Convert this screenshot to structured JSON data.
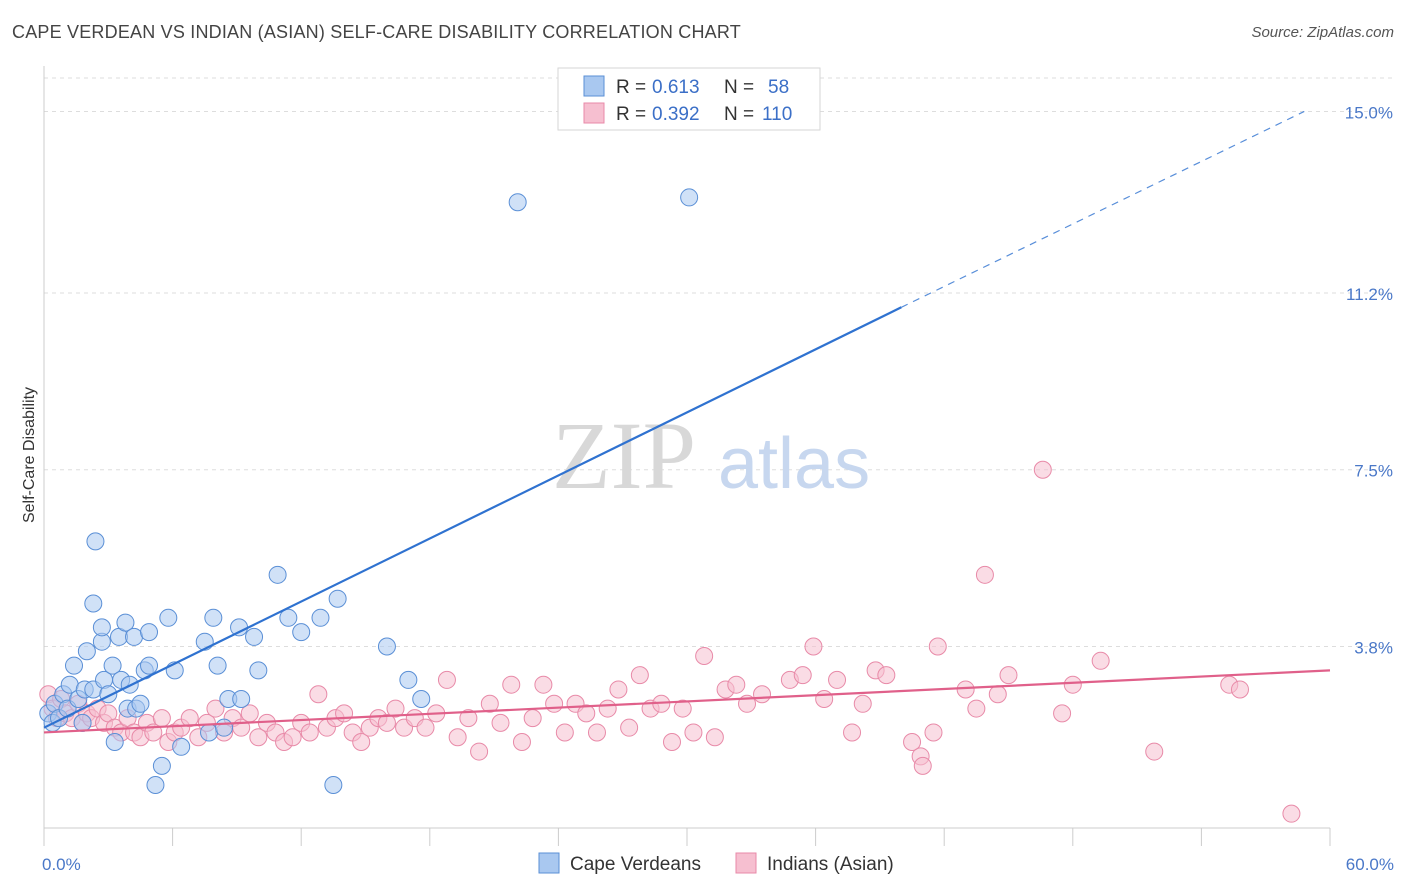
{
  "title": "CAPE VERDEAN VS INDIAN (ASIAN) SELF-CARE DISABILITY CORRELATION CHART",
  "source": "Source: ZipAtlas.com",
  "watermark": {
    "zip": "ZIP",
    "atlas": "atlas"
  },
  "colors": {
    "blue_fill": "#a9c8f0",
    "blue_stroke": "#5a8fd6",
    "blue_line": "#2f72d0",
    "pink_fill": "#f6bfd0",
    "pink_stroke": "#e88aa8",
    "pink_line": "#e0608a",
    "grid": "#dddddd",
    "axis_label": "#4a78c8"
  },
  "legend": {
    "row1": {
      "r_label": "R =",
      "r_value": "0.613",
      "n_label": "N =",
      "n_value": "58"
    },
    "row2": {
      "r_label": "R =",
      "r_value": "0.392",
      "n_label": "N =",
      "n_value": "110"
    }
  },
  "chart_data": {
    "type": "scatter",
    "title": "CAPE VERDEAN VS INDIAN (ASIAN) SELF-CARE DISABILITY CORRELATION CHART",
    "xlabel": "",
    "ylabel": "Self-Care Disability",
    "xlim": [
      0,
      60
    ],
    "ylim": [
      0,
      15.7
    ],
    "x_tick_labels": [
      "0.0%",
      "60.0%"
    ],
    "y_ticks": [
      3.8,
      7.5,
      11.2,
      15.0
    ],
    "y_tick_labels": [
      "3.8%",
      "7.5%",
      "11.2%",
      "15.0%"
    ],
    "grid": true,
    "legend_position": "top-center",
    "series": [
      {
        "name": "Cape Verdeans",
        "color": "#a9c8f0",
        "points": [
          [
            0.2,
            2.4
          ],
          [
            0.4,
            2.2
          ],
          [
            0.5,
            2.6
          ],
          [
            0.7,
            2.3
          ],
          [
            0.9,
            2.8
          ],
          [
            1.1,
            2.5
          ],
          [
            1.2,
            3.0
          ],
          [
            1.4,
            3.4
          ],
          [
            1.6,
            2.7
          ],
          [
            1.8,
            2.2
          ],
          [
            1.9,
            2.9
          ],
          [
            2.0,
            3.7
          ],
          [
            2.3,
            2.9
          ],
          [
            2.4,
            6.0
          ],
          [
            2.3,
            4.7
          ],
          [
            2.7,
            3.9
          ],
          [
            2.7,
            4.2
          ],
          [
            2.8,
            3.1
          ],
          [
            3.0,
            2.8
          ],
          [
            3.2,
            3.4
          ],
          [
            3.3,
            1.8
          ],
          [
            3.5,
            4.0
          ],
          [
            3.6,
            3.1
          ],
          [
            3.8,
            4.3
          ],
          [
            3.9,
            2.5
          ],
          [
            4.0,
            3.0
          ],
          [
            4.2,
            4.0
          ],
          [
            4.3,
            2.5
          ],
          [
            4.5,
            2.6
          ],
          [
            4.7,
            3.3
          ],
          [
            4.9,
            4.1
          ],
          [
            4.9,
            3.4
          ],
          [
            5.2,
            0.9
          ],
          [
            5.5,
            1.3
          ],
          [
            5.8,
            4.4
          ],
          [
            6.1,
            3.3
          ],
          [
            6.4,
            1.7
          ],
          [
            7.5,
            3.9
          ],
          [
            7.7,
            2.0
          ],
          [
            7.9,
            4.4
          ],
          [
            8.1,
            3.4
          ],
          [
            8.4,
            2.1
          ],
          [
            8.6,
            2.7
          ],
          [
            9.1,
            4.2
          ],
          [
            9.2,
            2.7
          ],
          [
            9.8,
            4.0
          ],
          [
            10.0,
            3.3
          ],
          [
            10.9,
            5.3
          ],
          [
            11.4,
            4.4
          ],
          [
            12.0,
            4.1
          ],
          [
            12.9,
            4.4
          ],
          [
            13.5,
            0.9
          ],
          [
            13.7,
            4.8
          ],
          [
            16.0,
            3.8
          ],
          [
            17.0,
            3.1
          ],
          [
            17.6,
            2.7
          ],
          [
            22.1,
            13.1
          ],
          [
            30.1,
            13.2
          ]
        ],
        "trend": {
          "x": [
            0,
            40,
            58.8
          ],
          "y": [
            2.1,
            10.9,
            15.0
          ],
          "dashed_from_x": 40
        }
      },
      {
        "name": "Indians (Asian)",
        "color": "#f6bfd0",
        "points": [
          [
            0.2,
            2.8
          ],
          [
            0.4,
            2.5
          ],
          [
            0.6,
            2.3
          ],
          [
            0.8,
            2.7
          ],
          [
            1.0,
            2.4
          ],
          [
            1.3,
            2.3
          ],
          [
            1.6,
            2.6
          ],
          [
            1.8,
            2.2
          ],
          [
            2.0,
            2.4
          ],
          [
            2.2,
            2.3
          ],
          [
            2.5,
            2.5
          ],
          [
            2.8,
            2.2
          ],
          [
            3.0,
            2.4
          ],
          [
            3.3,
            2.1
          ],
          [
            3.6,
            2.0
          ],
          [
            3.9,
            2.3
          ],
          [
            4.2,
            2.0
          ],
          [
            4.5,
            1.9
          ],
          [
            4.8,
            2.2
          ],
          [
            5.1,
            2.0
          ],
          [
            5.5,
            2.3
          ],
          [
            5.8,
            1.8
          ],
          [
            6.1,
            2.0
          ],
          [
            6.4,
            2.1
          ],
          [
            6.8,
            2.3
          ],
          [
            7.2,
            1.9
          ],
          [
            7.6,
            2.2
          ],
          [
            8.0,
            2.5
          ],
          [
            8.4,
            2.0
          ],
          [
            8.8,
            2.3
          ],
          [
            9.2,
            2.1
          ],
          [
            9.6,
            2.4
          ],
          [
            10.0,
            1.9
          ],
          [
            10.4,
            2.2
          ],
          [
            10.8,
            2.0
          ],
          [
            11.2,
            1.8
          ],
          [
            11.6,
            1.9
          ],
          [
            12.0,
            2.2
          ],
          [
            12.4,
            2.0
          ],
          [
            12.8,
            2.8
          ],
          [
            13.2,
            2.1
          ],
          [
            13.6,
            2.3
          ],
          [
            14.0,
            2.4
          ],
          [
            14.4,
            2.0
          ],
          [
            14.8,
            1.8
          ],
          [
            15.2,
            2.1
          ],
          [
            15.6,
            2.3
          ],
          [
            16.0,
            2.2
          ],
          [
            16.4,
            2.5
          ],
          [
            16.8,
            2.1
          ],
          [
            17.3,
            2.3
          ],
          [
            17.8,
            2.1
          ],
          [
            18.3,
            2.4
          ],
          [
            18.8,
            3.1
          ],
          [
            19.3,
            1.9
          ],
          [
            19.8,
            2.3
          ],
          [
            20.3,
            1.6
          ],
          [
            20.8,
            2.6
          ],
          [
            21.3,
            2.2
          ],
          [
            21.8,
            3.0
          ],
          [
            22.3,
            1.8
          ],
          [
            22.8,
            2.3
          ],
          [
            23.3,
            3.0
          ],
          [
            23.8,
            2.6
          ],
          [
            24.3,
            2.0
          ],
          [
            24.8,
            2.6
          ],
          [
            25.3,
            2.4
          ],
          [
            25.8,
            2.0
          ],
          [
            26.3,
            2.5
          ],
          [
            26.8,
            2.9
          ],
          [
            27.3,
            2.1
          ],
          [
            27.8,
            3.2
          ],
          [
            28.3,
            2.5
          ],
          [
            28.8,
            2.6
          ],
          [
            29.3,
            1.8
          ],
          [
            29.8,
            2.5
          ],
          [
            30.3,
            2.0
          ],
          [
            30.8,
            3.6
          ],
          [
            31.3,
            1.9
          ],
          [
            31.8,
            2.9
          ],
          [
            32.3,
            3.0
          ],
          [
            32.8,
            2.6
          ],
          [
            33.5,
            2.8
          ],
          [
            34.8,
            3.1
          ],
          [
            35.4,
            3.2
          ],
          [
            35.9,
            3.8
          ],
          [
            36.4,
            2.7
          ],
          [
            37.0,
            3.1
          ],
          [
            37.7,
            2.0
          ],
          [
            38.2,
            2.6
          ],
          [
            38.8,
            3.3
          ],
          [
            39.3,
            3.2
          ],
          [
            40.5,
            1.8
          ],
          [
            40.9,
            1.5
          ],
          [
            41.0,
            1.3
          ],
          [
            41.5,
            2.0
          ],
          [
            41.7,
            3.8
          ],
          [
            43.0,
            2.9
          ],
          [
            43.5,
            2.5
          ],
          [
            43.9,
            5.3
          ],
          [
            44.5,
            2.8
          ],
          [
            45.0,
            3.2
          ],
          [
            46.6,
            7.5
          ],
          [
            47.5,
            2.4
          ],
          [
            48.0,
            3.0
          ],
          [
            49.3,
            3.5
          ],
          [
            51.8,
            1.6
          ],
          [
            55.3,
            3.0
          ],
          [
            55.8,
            2.9
          ],
          [
            58.2,
            0.3
          ]
        ],
        "trend": {
          "x": [
            0,
            60
          ],
          "y": [
            2.0,
            3.3
          ]
        }
      }
    ]
  },
  "bottom_legend": {
    "series1": "Cape Verdeans",
    "series2": "Indians (Asian)"
  }
}
